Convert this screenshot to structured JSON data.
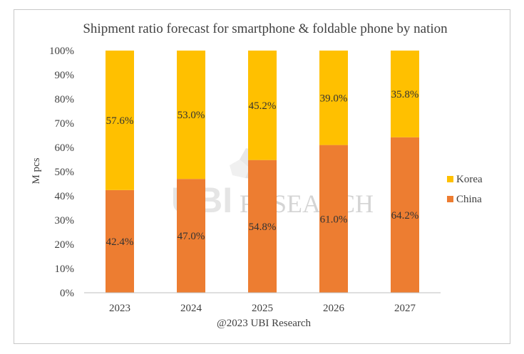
{
  "chart_data": {
    "type": "bar",
    "stacked": true,
    "title": "Shipment ratio forecast for smartphone & foldable phone by nation",
    "xlabel": "@2023 UBI Research",
    "ylabel": "M pcs",
    "categories": [
      "2023",
      "2024",
      "2025",
      "2026",
      "2027"
    ],
    "ylim": [
      0,
      100
    ],
    "yticks": [
      "0%",
      "10%",
      "20%",
      "30%",
      "40%",
      "50%",
      "60%",
      "70%",
      "80%",
      "90%",
      "100%"
    ],
    "series": [
      {
        "name": "China",
        "color": "#ED7D31",
        "values": [
          42.4,
          47.0,
          54.8,
          61.0,
          64.2
        ],
        "labels": [
          "42.4%",
          "47.0%",
          "54.8%",
          "61.0%",
          "64.2%"
        ]
      },
      {
        "name": "Korea",
        "color": "#FFC000",
        "values": [
          57.6,
          53.0,
          45.2,
          39.0,
          35.8
        ],
        "labels": [
          "57.6%",
          "53.0%",
          "45.2%",
          "39.0%",
          "35.8%"
        ]
      }
    ],
    "legend": {
      "position": "right",
      "order": [
        "Korea",
        "China"
      ]
    },
    "grid": false,
    "watermark": {
      "text": "RESEARCH",
      "logo": "UBI"
    }
  }
}
